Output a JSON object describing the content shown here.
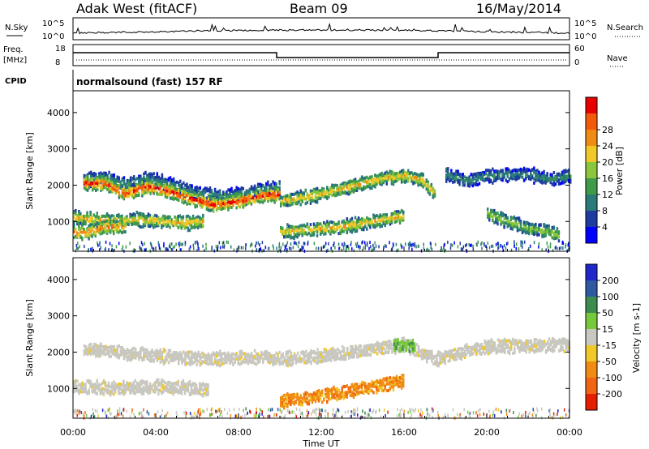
{
  "header": {
    "station": "Adak West (fitACF)",
    "beam": "Beam 09",
    "date": "16/May/2014"
  },
  "aux": {
    "nsky_label": "N.Sky",
    "nsky_ticks": [
      "10^5",
      "10^0"
    ],
    "nsearch_label": "N.Search",
    "nsearch_ticks": [
      "10^5",
      "10^0"
    ],
    "freq_label_1": "Freq.",
    "freq_label_2": "[MHz]",
    "freq_ticks": [
      "18",
      "8"
    ],
    "nave_label": "Nave",
    "nave_ticks": [
      "60",
      "0"
    ],
    "cpid_label": "CPID",
    "cpid_text": "normalsound (fast) 157 RF"
  },
  "axes": {
    "x_label": "Time UT",
    "x_ticks": [
      "00:00",
      "04:00",
      "08:00",
      "12:00",
      "16:00",
      "20:00",
      "00:00"
    ],
    "y_label": "Slant Range [km]",
    "y_ticks": [
      "1000",
      "2000",
      "3000",
      "4000"
    ]
  },
  "colors": {
    "ground_scatter": "#c8c8c0",
    "power": [
      "#0000ff",
      "#1e3ca0",
      "#2a7a7a",
      "#3f9a4a",
      "#8cc63c",
      "#f0c828",
      "#f08c14",
      "#f05a0a",
      "#e60000"
    ],
    "velocity": [
      "#1e28c8",
      "#2d5aa0",
      "#3c8c50",
      "#78c83c",
      "#c8c8c0",
      "#f0c828",
      "#f08c14",
      "#f06414",
      "#e61e00"
    ]
  },
  "chart_data": [
    {
      "type": "heatmap",
      "parameter": "Power",
      "colorbar_label": "Power [dB]",
      "colorbar_ticks": [
        "4",
        "8",
        "12",
        "16",
        "20",
        "24",
        "28"
      ],
      "xlim": [
        "00:00",
        "24:00"
      ],
      "ylim": [
        180,
        4600
      ],
      "features": [
        {
          "name": "upper band",
          "points": [
            [
              0.5,
              2150
            ],
            [
              1.5,
              2200
            ],
            [
              2.5,
              2000
            ],
            [
              3.5,
              2200
            ],
            [
              4.5,
              2050
            ],
            [
              6,
              1750
            ],
            [
              7.5,
              1700
            ],
            [
              9,
              1850
            ],
            [
              10,
              1950
            ]
          ],
          "peak_db": 10
        },
        {
          "name": "main band",
          "points": [
            [
              0.5,
              2050
            ],
            [
              1.5,
              2050
            ],
            [
              2.5,
              1750
            ],
            [
              3.5,
              1950
            ],
            [
              4.5,
              1850
            ],
            [
              5.5,
              1650
            ],
            [
              6.8,
              1450
            ],
            [
              8,
              1550
            ],
            [
              9,
              1700
            ],
            [
              10,
              1750
            ]
          ],
          "peak_db": 28
        },
        {
          "name": "near band",
          "points": [
            [
              0,
              1100
            ],
            [
              1,
              1050
            ],
            [
              2,
              1000
            ],
            [
              3,
              1050
            ],
            [
              4.5,
              1000
            ],
            [
              5.5,
              950
            ],
            [
              6.3,
              1000
            ]
          ],
          "peak_db": 20
        },
        {
          "name": "near echoes",
          "points": [
            [
              0,
              700
            ],
            [
              0.5,
              680
            ],
            [
              1,
              750
            ],
            [
              1.5,
              850
            ],
            [
              2.5,
              850
            ]
          ],
          "peak_db": 24
        },
        {
          "name": "afternoon band",
          "points": [
            [
              10,
              1550
            ],
            [
              11,
              1650
            ],
            [
              12,
              1750
            ],
            [
              13,
              1900
            ],
            [
              14,
              2050
            ],
            [
              15,
              2200
            ],
            [
              16,
              2250
            ],
            [
              16.8,
              2150
            ],
            [
              17.5,
              1750
            ]
          ],
          "peak_db": 20
        },
        {
          "name": "afternoon near band",
          "points": [
            [
              10,
              700
            ],
            [
              11,
              750
            ],
            [
              12,
              800
            ],
            [
              13,
              850
            ],
            [
              14,
              950
            ],
            [
              15,
              1050
            ],
            [
              16,
              1150
            ]
          ],
          "peak_db": 20
        },
        {
          "name": "evening band",
          "points": [
            [
              18,
              2300
            ],
            [
              19,
              2100
            ],
            [
              20,
              2250
            ],
            [
              22,
              2300
            ],
            [
              23,
              2150
            ],
            [
              24,
              2250
            ]
          ],
          "peak_db": 10
        },
        {
          "name": "night band",
          "points": [
            [
              20,
              1200
            ],
            [
              21,
              1000
            ],
            [
              22,
              800
            ],
            [
              23,
              700
            ],
            [
              23.5,
              600
            ]
          ],
          "peak_db": 16
        }
      ]
    },
    {
      "type": "heatmap",
      "parameter": "Velocity",
      "colorbar_label": "Velocity [m s-1]",
      "colorbar_ticks": [
        "200",
        "100",
        "50",
        "15",
        "-15",
        "-50",
        "-100",
        "-200"
      ],
      "xlim": [
        "00:00",
        "24:00"
      ],
      "ylim": [
        180,
        4600
      ],
      "features": [
        {
          "name": "ground scatter band",
          "points": [
            [
              0.5,
              2100
            ],
            [
              3,
              1950
            ],
            [
              6,
              1800
            ],
            [
              9,
              1850
            ],
            [
              10,
              1800
            ],
            [
              13,
              1950
            ],
            [
              16,
              2200
            ],
            [
              17.5,
              1800
            ],
            [
              20,
              2150
            ],
            [
              24,
              2200
            ]
          ],
          "velocity_ms": 0
        },
        {
          "name": "ground scatter near",
          "points": [
            [
              0,
              1050
            ],
            [
              2,
              1000
            ],
            [
              4,
              1050
            ],
            [
              6,
              1000
            ],
            [
              6.5,
              950
            ]
          ],
          "velocity_ms": 0
        },
        {
          "name": "flow region",
          "points": [
            [
              10,
              650
            ],
            [
              11,
              700
            ],
            [
              12,
              800
            ],
            [
              13,
              900
            ],
            [
              14,
              1000
            ],
            [
              15,
              1100
            ],
            [
              16,
              1200
            ]
          ],
          "velocity_ms": -50
        },
        {
          "name": "green patch",
          "points": [
            [
              15.5,
              2200
            ],
            [
              16.5,
              2150
            ]
          ],
          "velocity_ms": 50
        }
      ]
    }
  ]
}
